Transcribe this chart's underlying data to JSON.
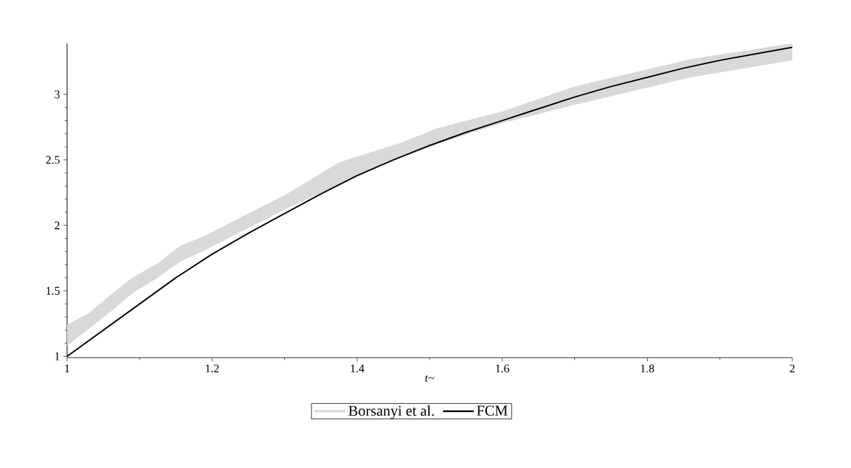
{
  "chart_data": {
    "type": "line",
    "xlabel": "*t*~",
    "xlim": [
      1,
      2
    ],
    "ylim": [
      0.99,
      3.39
    ],
    "xticks": [
      1,
      1.2,
      1.4,
      1.6,
      1.8,
      2
    ],
    "yticks": [
      1,
      1.5,
      2,
      2.5,
      3
    ],
    "legend": "bottom",
    "series": [
      {
        "name": "Borsanyi et al.",
        "color": "#d9d9d9",
        "x": [
          1.0,
          1.03,
          1.06,
          1.09,
          1.125,
          1.155,
          1.19,
          1.25,
          1.3,
          1.375,
          1.46,
          1.51,
          1.6,
          1.7,
          1.86,
          2.0
        ],
        "values": [
          null,
          null,
          null,
          null,
          null,
          null,
          null,
          null,
          null,
          null,
          null,
          null,
          null,
          null,
          null,
          null
        ],
        "lower": [
          1.08,
          1.21,
          1.34,
          1.48,
          1.6,
          1.72,
          1.81,
          1.98,
          2.12,
          2.31,
          2.52,
          2.62,
          2.78,
          2.92,
          3.13,
          3.26
        ],
        "upper": [
          1.24,
          1.33,
          1.47,
          1.6,
          1.71,
          1.84,
          1.92,
          2.09,
          2.23,
          2.48,
          2.63,
          2.74,
          2.87,
          3.06,
          3.27,
          3.39
        ]
      },
      {
        "name": "FCM",
        "type": "line",
        "color": "#000000",
        "x": [
          1.0,
          1.05,
          1.1,
          1.15,
          1.2,
          1.25,
          1.3,
          1.35,
          1.4,
          1.45,
          1.5,
          1.55,
          1.6,
          1.65,
          1.7,
          1.75,
          1.8,
          1.85,
          1.9,
          1.95,
          2.0
        ],
        "values": [
          1.0,
          1.2,
          1.4,
          1.6,
          1.78,
          1.94,
          2.09,
          2.24,
          2.38,
          2.5,
          2.61,
          2.71,
          2.8,
          2.89,
          2.98,
          3.06,
          3.13,
          3.2,
          3.26,
          3.31,
          3.36
        ]
      }
    ]
  }
}
